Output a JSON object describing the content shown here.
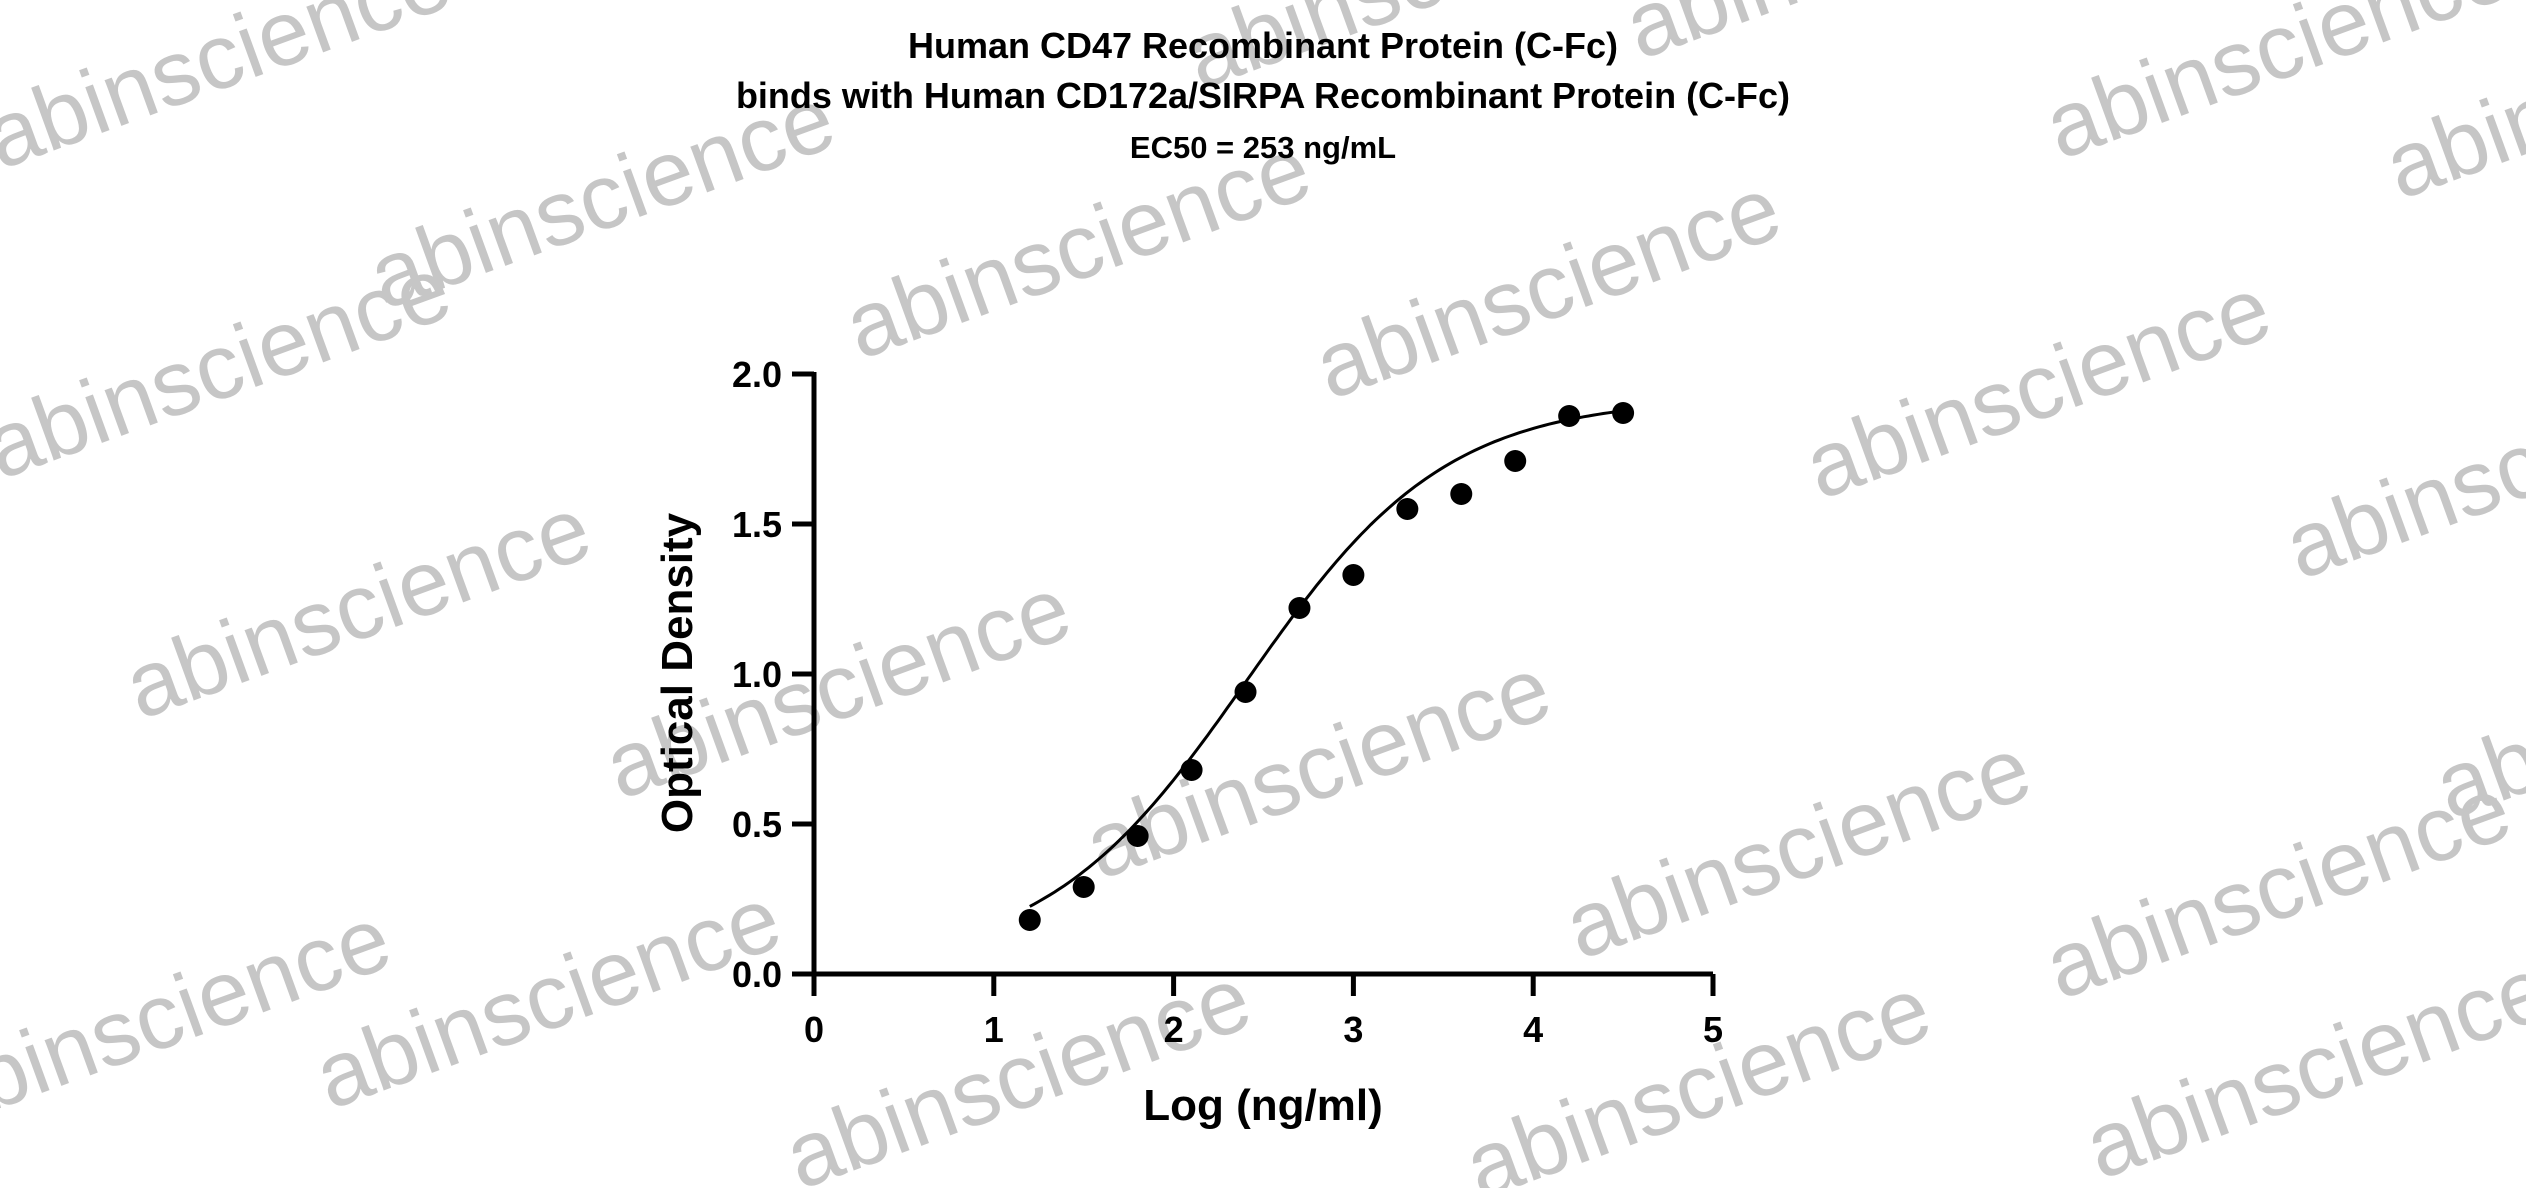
{
  "watermark": {
    "text": "abinscience",
    "color": "#c6c6c6"
  },
  "chart_data": {
    "type": "scatter",
    "title": [
      "Human CD47 Recombinant Protein (C-Fc)",
      "binds with Human CD172a/SIRPA Recombinant Protein (C-Fc)"
    ],
    "subtitle": "EC50 = 253 ng/mL",
    "xlabel": "Log (ng/ml)",
    "ylabel": "Optical Density",
    "xlim": [
      0,
      5
    ],
    "ylim": [
      0,
      2.0
    ],
    "x_ticks": [
      "0",
      "1",
      "2",
      "3",
      "4",
      "5"
    ],
    "y_ticks": [
      "0.0",
      "0.5",
      "1.0",
      "1.5",
      "2.0"
    ],
    "grid": false,
    "marker_color": "#000000",
    "curve": {
      "kind": "four-parameter-logistic fit",
      "bottom": 0.03,
      "top": 1.92,
      "log_ec50": 2.403,
      "hill_slope": 0.78
    },
    "points": {
      "x": [
        1.2,
        1.5,
        1.8,
        2.1,
        2.4,
        2.7,
        3.0,
        3.3,
        3.6,
        3.9,
        4.2,
        4.5
      ],
      "y": [
        0.18,
        0.29,
        0.46,
        0.68,
        0.94,
        1.22,
        1.33,
        1.55,
        1.6,
        1.71,
        1.86,
        1.87
      ]
    }
  }
}
